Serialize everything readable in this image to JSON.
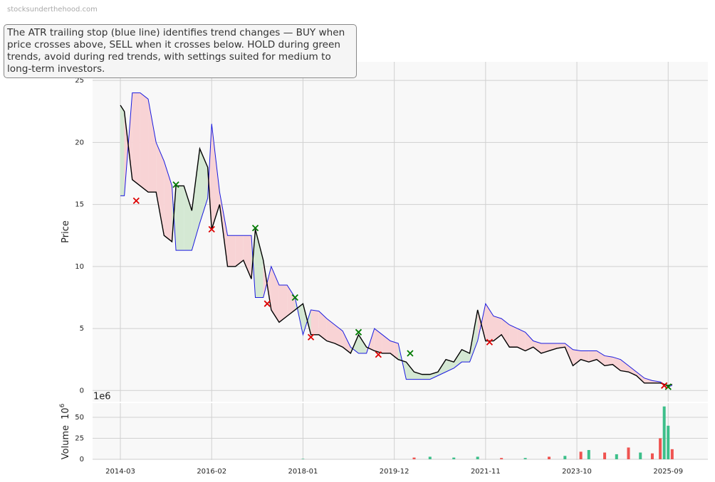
{
  "watermark": "stocksunderthehood.com",
  "annotation": "The ATR trailing stop (blue line) identifies trend changes — BUY when price crosses above, SELL when it crosses below. HOLD during green trends, avoid during red trends, with settings suited for medium to long-term investors.",
  "chart_data": [
    {
      "type": "line",
      "ylabel": "Price",
      "x": [
        "2014-03",
        "2014-04",
        "2014-06",
        "2014-08",
        "2014-10",
        "2014-12",
        "2015-02",
        "2015-04",
        "2015-05",
        "2015-07",
        "2015-09",
        "2015-11",
        "2016-01",
        "2016-02",
        "2016-04",
        "2016-06",
        "2016-08",
        "2016-10",
        "2016-12",
        "2017-01",
        "2017-03",
        "2017-05",
        "2017-07",
        "2017-09",
        "2017-11",
        "2018-01",
        "2018-03",
        "2018-05",
        "2018-07",
        "2018-09",
        "2018-11",
        "2019-01",
        "2019-03",
        "2019-05",
        "2019-07",
        "2019-09",
        "2019-11",
        "2020-01",
        "2020-03",
        "2020-05",
        "2020-07",
        "2020-09",
        "2020-11",
        "2021-01",
        "2021-03",
        "2021-05",
        "2021-07",
        "2021-09",
        "2021-11",
        "2022-01",
        "2022-03",
        "2022-05",
        "2022-07",
        "2022-09",
        "2022-11",
        "2023-01",
        "2023-03",
        "2023-05",
        "2023-07",
        "2023-09",
        "2023-11",
        "2024-01",
        "2024-03",
        "2024-05",
        "2024-07",
        "2024-09",
        "2024-11",
        "2025-01",
        "2025-03",
        "2025-05",
        "2025-07",
        "2025-09",
        "2025-10"
      ],
      "series": [
        {
          "color": "#000000",
          "values": [
            23,
            22.5,
            17,
            16.5,
            16,
            16,
            12.5,
            12,
            16.5,
            16.5,
            14.5,
            19.5,
            18,
            13,
            15,
            10,
            10,
            10.5,
            9,
            13,
            10.5,
            6.5,
            5.5,
            6,
            6.5,
            7,
            4.5,
            4.5,
            4,
            3.8,
            3.5,
            3,
            4.5,
            3.5,
            3.2,
            3,
            3,
            2.5,
            2.3,
            1.5,
            1.3,
            1.3,
            1.5,
            2.5,
            2.3,
            3.3,
            3,
            6.5,
            4,
            4,
            4.5,
            3.5,
            3.5,
            3.2,
            3.5,
            3,
            3.2,
            3.4,
            3.5,
            2,
            2.5,
            2.3,
            2.5,
            2,
            2.1,
            1.6,
            1.5,
            1.2,
            0.6,
            0.6,
            0.6,
            0.4,
            0.5
          ]
        },
        {
          "color": "#1a1adf",
          "values": [
            15.7,
            15.7,
            24,
            24,
            23.5,
            20,
            18.5,
            16.5,
            11.3,
            11.3,
            11.3,
            13.5,
            15.5,
            21.5,
            16,
            12.5,
            12.5,
            12.5,
            12.5,
            7.5,
            7.5,
            10,
            8.5,
            8.5,
            7.5,
            4.5,
            6.5,
            6.4,
            5.8,
            5.3,
            4.8,
            3.5,
            3,
            3,
            5,
            4.5,
            4,
            3.8,
            0.9,
            0.9,
            0.9,
            0.9,
            1.2,
            1.5,
            1.8,
            2.3,
            2.3,
            4,
            7,
            6,
            5.8,
            5.3,
            5,
            4.7,
            4,
            3.8,
            3.8,
            3.8,
            3.8,
            3.3,
            3.2,
            3.2,
            3.2,
            2.8,
            2.7,
            2.5,
            2,
            1.5,
            1,
            0.8,
            0.7,
            0.3,
            0.4
          ]
        }
      ],
      "fill_above": "#d4e8d3",
      "fill_below": "#f8d3d5",
      "buy": {
        "color": "#007a00",
        "x": [
          "2015-05",
          "2017-01",
          "2017-11",
          "2019-03",
          "2020-04",
          "2025-09"
        ],
        "values": [
          16.6,
          13.1,
          7.5,
          4.7,
          3.0,
          0.3
        ]
      },
      "sell": {
        "color": "#dd0000",
        "x": [
          "2014-07",
          "2016-02",
          "2017-04",
          "2018-03",
          "2019-08",
          "2021-12",
          "2025-08"
        ],
        "values": [
          15.3,
          13.0,
          7.0,
          4.3,
          2.9,
          3.9,
          0.4
        ]
      },
      "xlim": [
        "2013-08",
        "2026-07"
      ],
      "xticks": [
        "2014-03",
        "2016-02",
        "2018-01",
        "2019-12",
        "2021-11",
        "2023-10",
        "2025-09"
      ],
      "ylim": [
        -0.9,
        26.5
      ],
      "yticks": [
        0,
        5,
        10,
        15,
        20,
        25
      ],
      "grid": true
    },
    {
      "type": "bar",
      "ylabel": "Volume",
      "ylabel_unit_base": "10",
      "ylabel_unit_exponent": "6",
      "offset_text": "1e6",
      "x": [
        "2018-01",
        "2020-05",
        "2020-09",
        "2021-03",
        "2021-09",
        "2022-03",
        "2022-09",
        "2023-03",
        "2023-07",
        "2023-11",
        "2024-01",
        "2024-05",
        "2024-08",
        "2024-11",
        "2025-02",
        "2025-05",
        "2025-07",
        "2025-08",
        "2025-09",
        "2025-10"
      ],
      "values": [
        0.5,
        2,
        3,
        2,
        3,
        1.5,
        1.5,
        3,
        4,
        9,
        11,
        8,
        6,
        14,
        8,
        7,
        25,
        63,
        40,
        12
      ],
      "colors": [
        "#3dbf8a",
        "#ef5350",
        "#3dbf8a",
        "#3dbf8a",
        "#3dbf8a",
        "#ef5350",
        "#3dbf8a",
        "#ef5350",
        "#3dbf8a",
        "#ef5350",
        "#3dbf8a",
        "#ef5350",
        "#3dbf8a",
        "#ef5350",
        "#3dbf8a",
        "#ef5350",
        "#ef5350",
        "#3dbf8a",
        "#3dbf8a",
        "#ef5350"
      ],
      "xlim": [
        "2013-08",
        "2026-07"
      ],
      "xticks": [
        "2014-03",
        "2016-02",
        "2018-01",
        "2019-12",
        "2021-11",
        "2023-10",
        "2025-09"
      ],
      "ylim": [
        -0.85,
        67
      ],
      "yticks": [
        0,
        25,
        50
      ],
      "grid": true
    }
  ]
}
